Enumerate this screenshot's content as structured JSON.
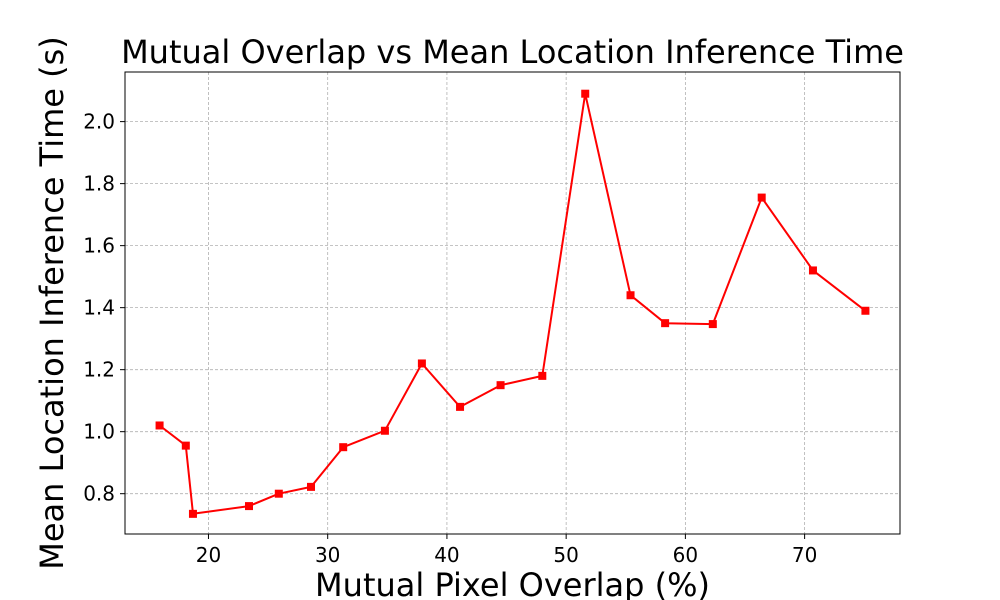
{
  "chart_data": {
    "type": "line",
    "title": "Mutual Overlap vs Mean Location Inference Time",
    "xlabel": "Mutual Pixel Overlap (%)",
    "ylabel": "Mean Location Inference Time (s)",
    "xlim": [
      13,
      78
    ],
    "ylim": [
      0.67,
      2.16
    ],
    "xticks": [
      20,
      30,
      40,
      50,
      60,
      70
    ],
    "yticks": [
      0.8,
      1.0,
      1.2,
      1.4,
      1.6,
      1.8,
      2.0
    ],
    "xtick_labels": [
      "20",
      "30",
      "40",
      "50",
      "60",
      "70"
    ],
    "ytick_labels": [
      "0.8",
      "1.0",
      "1.2",
      "1.4",
      "1.6",
      "1.8",
      "2.0"
    ],
    "grid": true,
    "series": [
      {
        "color": "#ff0000",
        "marker": "square",
        "x": [
          15.9,
          18.1,
          18.7,
          23.4,
          25.9,
          28.6,
          31.3,
          34.8,
          37.9,
          41.1,
          44.5,
          48.0,
          51.6,
          55.4,
          58.3,
          62.3,
          66.4,
          70.7,
          75.1
        ],
        "y": [
          1.02,
          0.955,
          0.735,
          0.76,
          0.8,
          0.822,
          0.95,
          1.003,
          1.22,
          1.08,
          1.15,
          1.18,
          2.09,
          1.44,
          1.35,
          1.347,
          1.755,
          1.52,
          1.39
        ]
      }
    ]
  }
}
